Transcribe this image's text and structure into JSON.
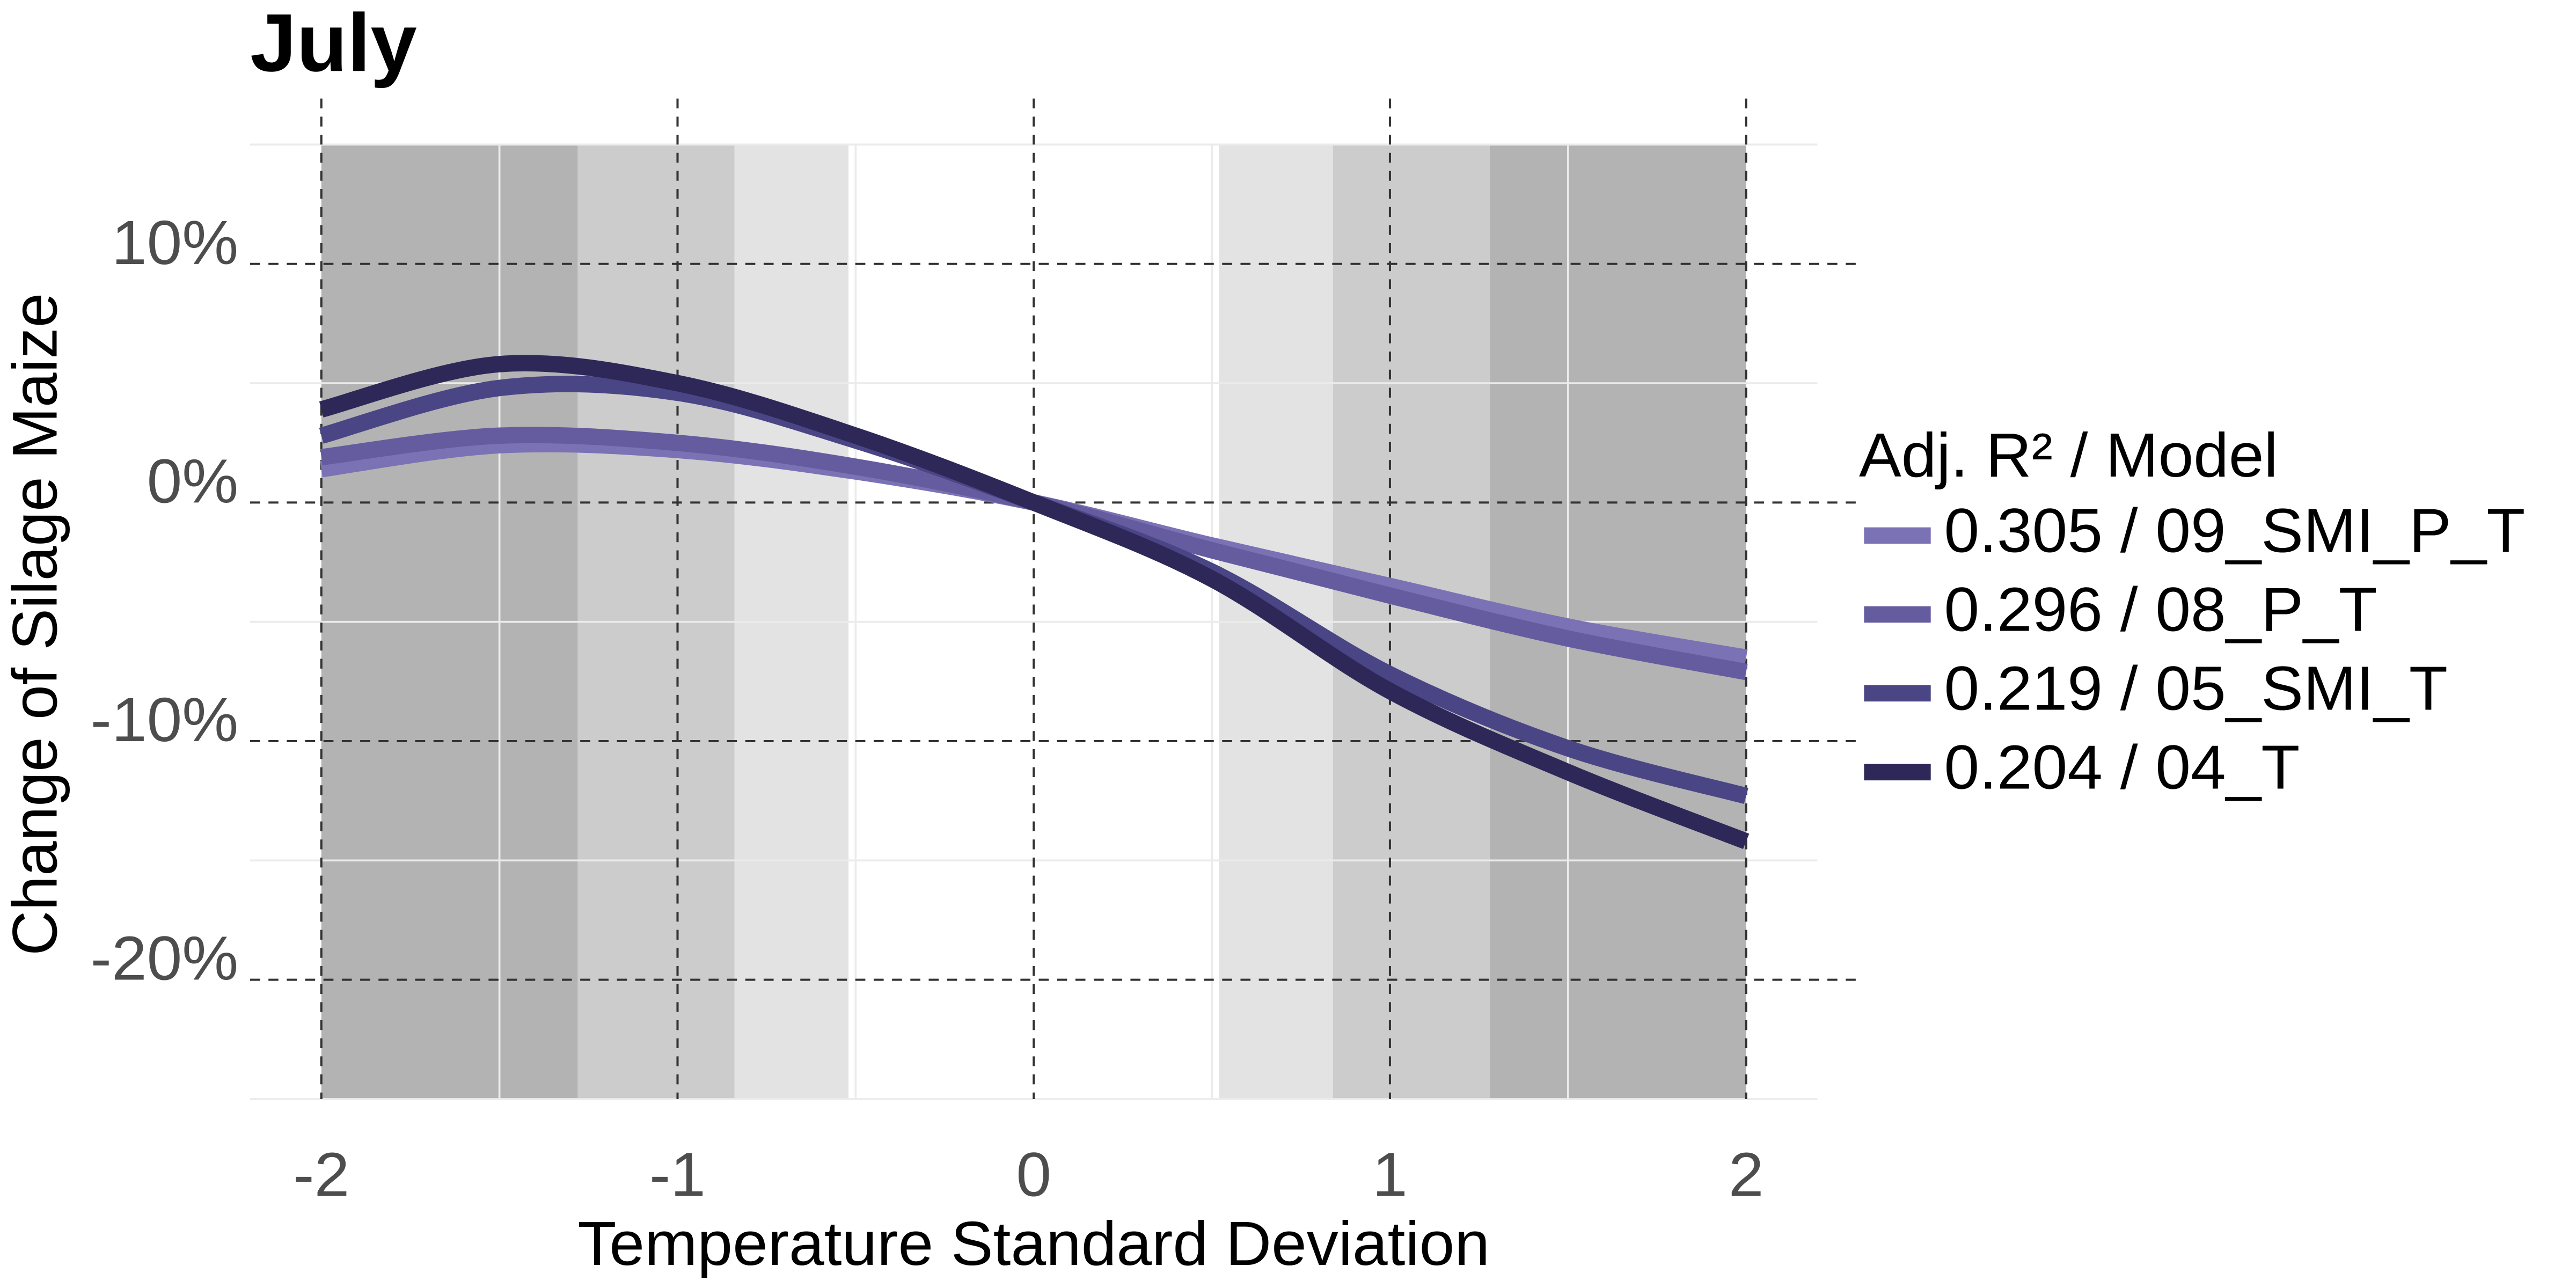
{
  "chart_data": {
    "type": "line",
    "title": "July",
    "x_label": "Temperature Standard Deviation",
    "y_label": "Change of Silage Maize",
    "legend_title": "Adj. R² / Model",
    "legend_position": "right",
    "grid": true,
    "xlim": [
      -2.2,
      2.2
    ],
    "ylim": [
      -25,
      15
    ],
    "xticks": [
      -2,
      -1,
      0,
      1,
      2
    ],
    "yticks": [
      {
        "value": -20,
        "label": "-20%"
      },
      {
        "value": -10,
        "label": "-10%"
      },
      {
        "value": 0,
        "label": "0%"
      },
      {
        "value": 10,
        "label": "10%"
      }
    ],
    "bands": [
      {
        "from": -2,
        "to": -1.28,
        "color": "#b3b3b3"
      },
      {
        "from": -1.28,
        "to": -0.84,
        "color": "#cccccc"
      },
      {
        "from": -0.84,
        "to": -0.52,
        "color": "#e3e3e3"
      },
      {
        "from": 0.52,
        "to": 0.84,
        "color": "#e3e3e3"
      },
      {
        "from": 0.84,
        "to": 1.28,
        "color": "#cccccc"
      },
      {
        "from": 1.28,
        "to": 2,
        "color": "#b3b3b3"
      }
    ],
    "x": [
      -2,
      -1.5,
      -1,
      -0.5,
      0,
      0.5,
      1,
      1.5,
      2
    ],
    "series": [
      {
        "name": "0.305 / 09_SMI_P_T",
        "color": "#7b72b5",
        "values": [
          1.4,
          2.4,
          2.2,
          1.3,
          0,
          -1.8,
          -3.5,
          -5.2,
          -6.5
        ]
      },
      {
        "name": "0.296 / 08_P_T",
        "color": "#655c9f",
        "values": [
          1.9,
          2.8,
          2.5,
          1.5,
          0,
          -2.0,
          -3.9,
          -5.7,
          -7.1
        ]
      },
      {
        "name": "0.219 / 05_SMI_T",
        "color": "#4a4585",
        "values": [
          2.8,
          4.8,
          4.6,
          2.6,
          0,
          -2.9,
          -7.2,
          -10.3,
          -12.3
        ]
      },
      {
        "name": "0.204 / 04_T",
        "color": "#2d2858",
        "values": [
          3.9,
          5.8,
          5.0,
          2.8,
          0,
          -3.2,
          -7.9,
          -11.3,
          -14.2
        ]
      }
    ]
  }
}
